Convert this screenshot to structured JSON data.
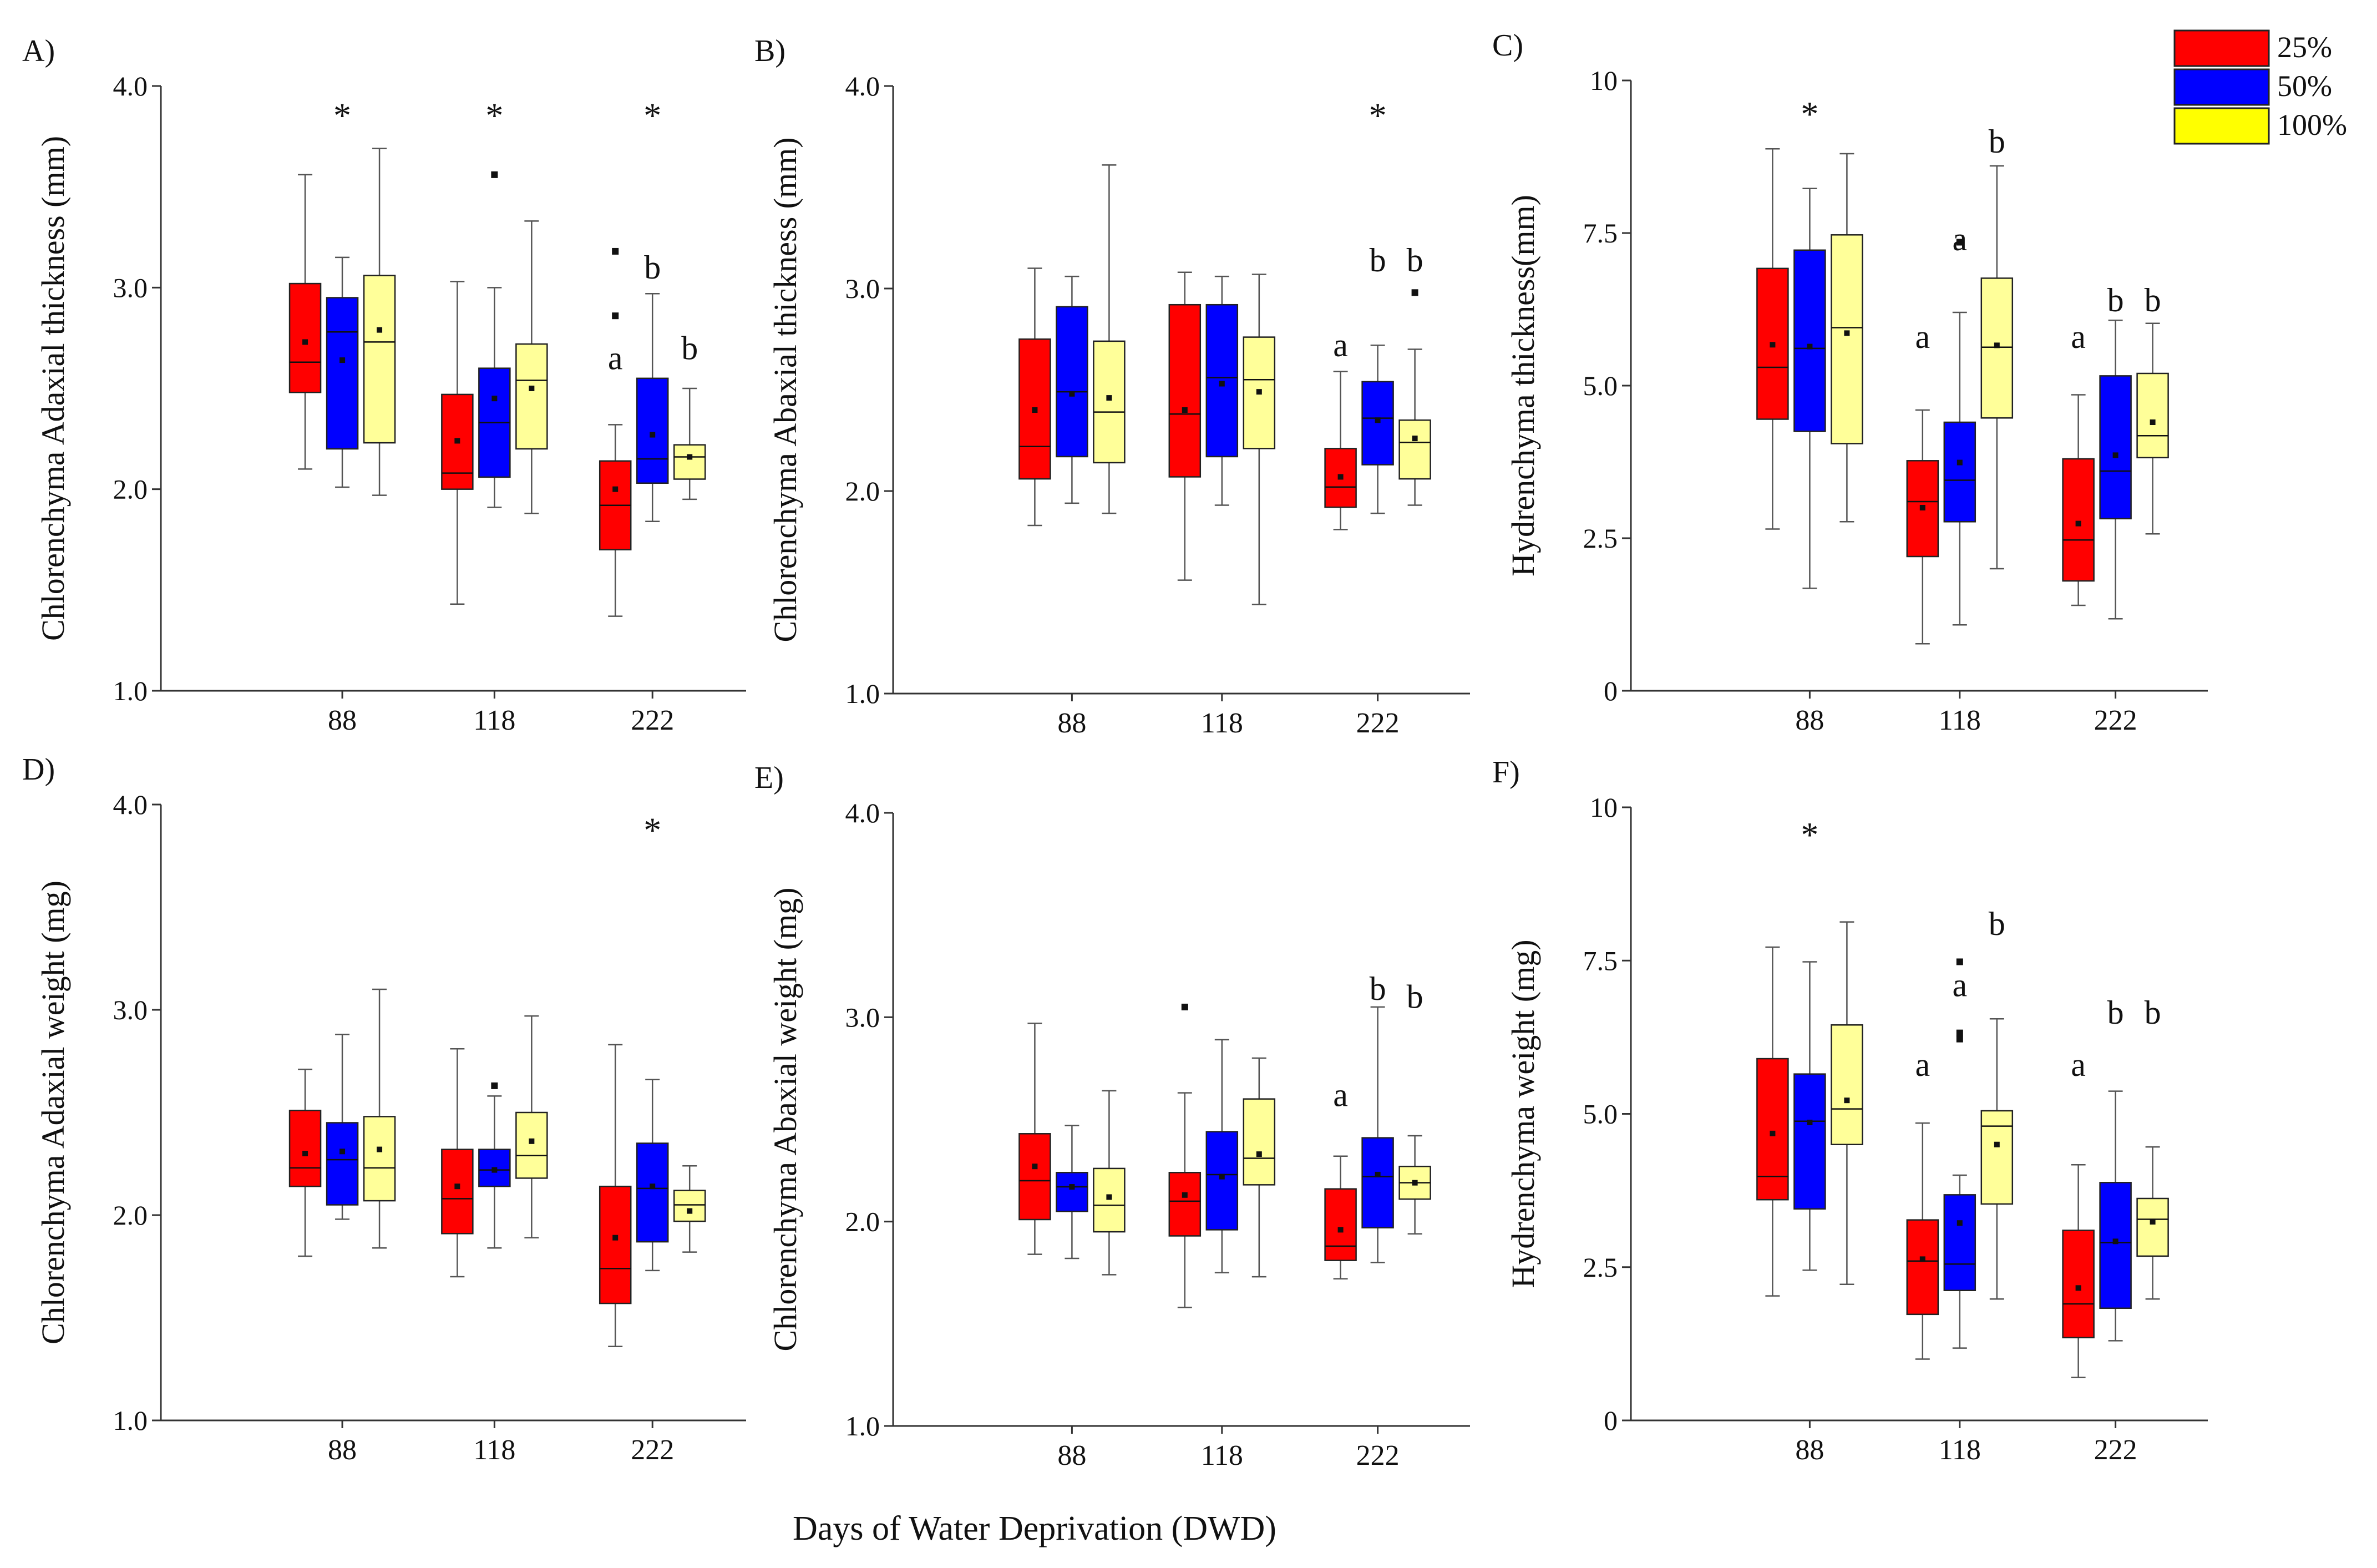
{
  "figure": {
    "xlabel": "Days of Water Deprivation (DWD)"
  },
  "legend": {
    "placement": "top-right",
    "entries": [
      {
        "label": "25%",
        "color": "#ff0000"
      },
      {
        "label": "50%",
        "color": "#0000ff"
      },
      {
        "label": "100%",
        "color": "#ffff00"
      }
    ]
  },
  "box_colors": [
    "#ff0000",
    "#0000ff",
    "#ffff99"
  ],
  "chart_data": [
    {
      "type": "boxplot",
      "panel": "A)",
      "ylabel": "Chlorenchyma Adaxial thickness (mm)",
      "ylim": [
        1.0,
        4.0
      ],
      "yticks": [
        "1.0",
        "2.0",
        "3.0",
        "4.0"
      ],
      "ytick_values": [
        1.0,
        2.0,
        3.0,
        4.0
      ],
      "categories": [
        "88",
        "118",
        "222"
      ],
      "series": [
        {
          "name": "25%",
          "boxes": [
            {
              "whislo": 2.1,
              "q1": 2.48,
              "med": 2.63,
              "mean": 2.73,
              "q3": 3.02,
              "whishi": 3.56,
              "fliers": []
            },
            {
              "whislo": 1.43,
              "q1": 2.0,
              "med": 2.08,
              "mean": 2.24,
              "q3": 2.47,
              "whishi": 3.03,
              "fliers": []
            },
            {
              "whislo": 1.37,
              "q1": 1.7,
              "med": 1.92,
              "mean": 2.0,
              "q3": 2.14,
              "whishi": 2.32,
              "fliers": [
                2.86,
                3.18
              ]
            }
          ]
        },
        {
          "name": "50%",
          "boxes": [
            {
              "whislo": 2.01,
              "q1": 2.2,
              "med": 2.78,
              "mean": 2.64,
              "q3": 2.95,
              "whishi": 3.15,
              "fliers": []
            },
            {
              "whislo": 1.91,
              "q1": 2.06,
              "med": 2.33,
              "mean": 2.45,
              "q3": 2.6,
              "whishi": 3.0,
              "fliers": [
                3.56
              ]
            },
            {
              "whislo": 1.84,
              "q1": 2.03,
              "med": 2.15,
              "mean": 2.27,
              "q3": 2.55,
              "whishi": 2.97,
              "fliers": []
            }
          ]
        },
        {
          "name": "100%",
          "boxes": [
            {
              "whislo": 1.97,
              "q1": 2.23,
              "med": 2.73,
              "mean": 2.79,
              "q3": 3.06,
              "whishi": 3.69,
              "fliers": []
            },
            {
              "whislo": 1.88,
              "q1": 2.2,
              "med": 2.54,
              "mean": 2.5,
              "q3": 2.72,
              "whishi": 3.33,
              "fliers": []
            },
            {
              "whislo": 1.95,
              "q1": 2.05,
              "med": 2.16,
              "mean": 2.16,
              "q3": 2.22,
              "whishi": 2.5,
              "fliers": []
            }
          ]
        }
      ],
      "annotations": [
        {
          "text": "*",
          "group": 0,
          "member": 1,
          "y": 3.9
        },
        {
          "text": "*",
          "group": 1,
          "member": 1,
          "y": 3.9
        },
        {
          "text": "*",
          "group": 2,
          "member": 1,
          "y": 3.9
        },
        {
          "text": "a",
          "group": 2,
          "member": 0,
          "y": 2.65
        },
        {
          "text": "b",
          "group": 2,
          "member": 1,
          "y": 3.1
        },
        {
          "text": "b",
          "group": 2,
          "member": 2,
          "y": 2.7
        }
      ]
    },
    {
      "type": "boxplot",
      "panel": "B)",
      "ylabel": "Chlorenchyma Abaxial thickness (mm)",
      "ylim": [
        1.0,
        4.0
      ],
      "yticks": [
        "1.0",
        "2.0",
        "3.0",
        "4.0"
      ],
      "ytick_values": [
        1.0,
        2.0,
        3.0,
        4.0
      ],
      "categories": [
        "88",
        "118",
        "222"
      ],
      "series": [
        {
          "name": "25%",
          "boxes": [
            {
              "whislo": 1.83,
              "q1": 2.06,
              "med": 2.22,
              "mean": 2.4,
              "q3": 2.75,
              "whishi": 3.1,
              "fliers": []
            },
            {
              "whislo": 1.56,
              "q1": 2.07,
              "med": 2.38,
              "mean": 2.4,
              "q3": 2.92,
              "whishi": 3.08,
              "fliers": []
            },
            {
              "whislo": 1.81,
              "q1": 1.92,
              "med": 2.02,
              "mean": 2.07,
              "q3": 2.21,
              "whishi": 2.59,
              "fliers": []
            }
          ]
        },
        {
          "name": "50%",
          "boxes": [
            {
              "whislo": 1.94,
              "q1": 2.17,
              "med": 2.49,
              "mean": 2.48,
              "q3": 2.91,
              "whishi": 3.06,
              "fliers": []
            },
            {
              "whislo": 1.93,
              "q1": 2.17,
              "med": 2.56,
              "mean": 2.53,
              "q3": 2.92,
              "whishi": 3.06,
              "fliers": []
            },
            {
              "whislo": 1.89,
              "q1": 2.13,
              "med": 2.36,
              "mean": 2.35,
              "q3": 2.54,
              "whishi": 2.72,
              "fliers": []
            }
          ]
        },
        {
          "name": "100%",
          "boxes": [
            {
              "whislo": 1.89,
              "q1": 2.14,
              "med": 2.39,
              "mean": 2.46,
              "q3": 2.74,
              "whishi": 3.61,
              "fliers": []
            },
            {
              "whislo": 1.44,
              "q1": 2.21,
              "med": 2.55,
              "mean": 2.49,
              "q3": 2.76,
              "whishi": 3.07,
              "fliers": []
            },
            {
              "whislo": 1.93,
              "q1": 2.06,
              "med": 2.24,
              "mean": 2.26,
              "q3": 2.35,
              "whishi": 2.7,
              "fliers": [
                2.98
              ]
            }
          ]
        }
      ],
      "annotations": [
        {
          "text": "*",
          "group": 2,
          "member": 1,
          "y": 3.9
        },
        {
          "text": "a",
          "group": 2,
          "member": 0,
          "y": 2.72
        },
        {
          "text": "b",
          "group": 2,
          "member": 1,
          "y": 3.14
        },
        {
          "text": "b",
          "group": 2,
          "member": 2,
          "y": 3.14
        }
      ]
    },
    {
      "type": "boxplot",
      "panel": "C)",
      "ylabel": "Hydrenchyma thickness(mm)",
      "ylim": [
        0,
        10
      ],
      "yticks": [
        "0",
        "2.5",
        "5.0",
        "7.5",
        "10"
      ],
      "ytick_values": [
        0,
        2.5,
        5.0,
        7.5,
        10
      ],
      "categories": [
        "88",
        "118",
        "222"
      ],
      "series": [
        {
          "name": "25%",
          "boxes": [
            {
              "whislo": 2.65,
              "q1": 4.45,
              "med": 5.3,
              "mean": 5.67,
              "q3": 6.92,
              "whishi": 8.88,
              "fliers": []
            },
            {
              "whislo": 0.77,
              "q1": 2.2,
              "med": 3.1,
              "mean": 3.0,
              "q3": 3.77,
              "whishi": 4.6,
              "fliers": []
            },
            {
              "whislo": 1.4,
              "q1": 1.8,
              "med": 2.47,
              "mean": 2.74,
              "q3": 3.8,
              "whishi": 4.85,
              "fliers": []
            }
          ]
        },
        {
          "name": "50%",
          "boxes": [
            {
              "whislo": 1.68,
              "q1": 4.25,
              "med": 5.61,
              "mean": 5.64,
              "q3": 7.22,
              "whishi": 8.23,
              "fliers": []
            },
            {
              "whislo": 1.08,
              "q1": 2.77,
              "med": 3.45,
              "mean": 3.74,
              "q3": 4.4,
              "whishi": 6.2,
              "fliers": [
                7.35
              ]
            },
            {
              "whislo": 1.18,
              "q1": 2.82,
              "med": 3.6,
              "mean": 3.86,
              "q3": 5.16,
              "whishi": 6.07,
              "fliers": []
            }
          ]
        },
        {
          "name": "100%",
          "boxes": [
            {
              "whislo": 2.77,
              "q1": 4.05,
              "med": 5.95,
              "mean": 5.86,
              "q3": 7.47,
              "whishi": 8.8,
              "fliers": []
            },
            {
              "whislo": 2.0,
              "q1": 4.47,
              "med": 5.63,
              "mean": 5.66,
              "q3": 6.76,
              "whishi": 8.6,
              "fliers": []
            },
            {
              "whislo": 2.57,
              "q1": 3.82,
              "med": 4.18,
              "mean": 4.4,
              "q3": 5.2,
              "whishi": 6.02,
              "fliers": []
            }
          ]
        }
      ],
      "annotations": [
        {
          "text": "*",
          "group": 0,
          "member": 1,
          "y": 9.6
        },
        {
          "text": "a",
          "group": 1,
          "member": 0,
          "y": 5.8
        },
        {
          "text": "a",
          "group": 1,
          "member": 1,
          "y": 7.4
        },
        {
          "text": "b",
          "group": 1,
          "member": 2,
          "y": 9.0
        },
        {
          "text": "a",
          "group": 2,
          "member": 0,
          "y": 5.8
        },
        {
          "text": "b",
          "group": 2,
          "member": 1,
          "y": 6.4
        },
        {
          "text": "b",
          "group": 2,
          "member": 2,
          "y": 6.4
        }
      ]
    },
    {
      "type": "boxplot",
      "panel": "D)",
      "ylabel": "Chlorenchyma Adaxial weight (mg)",
      "ylim": [
        1.0,
        4.0
      ],
      "yticks": [
        "1.0",
        "2.0",
        "3.0",
        "4.0"
      ],
      "ytick_values": [
        1.0,
        2.0,
        3.0,
        4.0
      ],
      "categories": [
        "88",
        "118",
        "222"
      ],
      "series": [
        {
          "name": "25%",
          "boxes": [
            {
              "whislo": 1.8,
              "q1": 2.14,
              "med": 2.23,
              "mean": 2.3,
              "q3": 2.51,
              "whishi": 2.71,
              "fliers": []
            },
            {
              "whislo": 1.7,
              "q1": 1.91,
              "med": 2.08,
              "mean": 2.14,
              "q3": 2.32,
              "whishi": 2.81,
              "fliers": []
            },
            {
              "whislo": 1.36,
              "q1": 1.57,
              "med": 1.74,
              "mean": 1.89,
              "q3": 2.14,
              "whishi": 2.83,
              "fliers": []
            }
          ]
        },
        {
          "name": "50%",
          "boxes": [
            {
              "whislo": 1.98,
              "q1": 2.05,
              "med": 2.27,
              "mean": 2.31,
              "q3": 2.45,
              "whishi": 2.88,
              "fliers": []
            },
            {
              "whislo": 1.84,
              "q1": 2.14,
              "med": 2.22,
              "mean": 2.22,
              "q3": 2.32,
              "whishi": 2.58,
              "fliers": [
                2.63
              ]
            },
            {
              "whislo": 1.73,
              "q1": 1.87,
              "med": 2.13,
              "mean": 2.14,
              "q3": 2.35,
              "whishi": 2.66,
              "fliers": []
            }
          ]
        },
        {
          "name": "100%",
          "boxes": [
            {
              "whislo": 1.84,
              "q1": 2.07,
              "med": 2.23,
              "mean": 2.32,
              "q3": 2.48,
              "whishi": 3.1,
              "fliers": []
            },
            {
              "whislo": 1.89,
              "q1": 2.18,
              "med": 2.29,
              "mean": 2.36,
              "q3": 2.5,
              "whishi": 2.97,
              "fliers": []
            },
            {
              "whislo": 1.82,
              "q1": 1.97,
              "med": 2.05,
              "mean": 2.02,
              "q3": 2.12,
              "whishi": 2.24,
              "fliers": []
            }
          ]
        }
      ],
      "annotations": [
        {
          "text": "*",
          "group": 2,
          "member": 1,
          "y": 3.92
        }
      ]
    },
    {
      "type": "boxplot",
      "panel": "E)",
      "ylabel": "Chlorenchyma Abaxial weight (mg)",
      "ylim": [
        1.0,
        4.0
      ],
      "yticks": [
        "1.0",
        "2.0",
        "3.0",
        "4.0"
      ],
      "ytick_values": [
        1.0,
        2.0,
        3.0,
        4.0
      ],
      "categories": [
        "88",
        "118",
        "222"
      ],
      "series": [
        {
          "name": "25%",
          "boxes": [
            {
              "whislo": 1.84,
              "q1": 2.01,
              "med": 2.2,
              "mean": 2.27,
              "q3": 2.43,
              "whishi": 2.97,
              "fliers": []
            },
            {
              "whislo": 1.58,
              "q1": 1.93,
              "med": 2.1,
              "mean": 2.13,
              "q3": 2.24,
              "whishi": 2.63,
              "fliers": [
                3.05
              ]
            },
            {
              "whislo": 1.72,
              "q1": 1.81,
              "med": 1.88,
              "mean": 1.96,
              "q3": 2.16,
              "whishi": 2.32,
              "fliers": []
            }
          ]
        },
        {
          "name": "50%",
          "boxes": [
            {
              "whislo": 1.82,
              "q1": 2.05,
              "med": 2.17,
              "mean": 2.17,
              "q3": 2.24,
              "whishi": 2.47,
              "fliers": []
            },
            {
              "whislo": 1.75,
              "q1": 1.96,
              "med": 2.23,
              "mean": 2.22,
              "q3": 2.44,
              "whishi": 2.89,
              "fliers": []
            },
            {
              "whislo": 1.8,
              "q1": 1.97,
              "med": 2.22,
              "mean": 2.23,
              "q3": 2.41,
              "whishi": 3.05,
              "fliers": []
            }
          ]
        },
        {
          "name": "100%",
          "boxes": [
            {
              "whislo": 1.74,
              "q1": 1.95,
              "med": 2.08,
              "mean": 2.12,
              "q3": 2.26,
              "whishi": 2.64,
              "fliers": []
            },
            {
              "whislo": 1.73,
              "q1": 2.18,
              "med": 2.31,
              "mean": 2.33,
              "q3": 2.6,
              "whishi": 2.8,
              "fliers": []
            },
            {
              "whislo": 1.94,
              "q1": 2.11,
              "med": 2.19,
              "mean": 2.19,
              "q3": 2.27,
              "whishi": 2.42,
              "fliers": []
            }
          ]
        }
      ],
      "annotations": [
        {
          "text": "a",
          "group": 2,
          "member": 0,
          "y": 2.62
        },
        {
          "text": "b",
          "group": 2,
          "member": 1,
          "y": 3.14
        },
        {
          "text": "b",
          "group": 2,
          "member": 2,
          "y": 3.1
        }
      ]
    },
    {
      "type": "boxplot",
      "panel": "F)",
      "ylabel": "Hydrenchyma weight (mg)",
      "ylim": [
        0,
        10
      ],
      "yticks": [
        "0",
        "2.5",
        "5.0",
        "7.5",
        "10"
      ],
      "ytick_values": [
        0,
        2.5,
        5.0,
        7.5,
        10
      ],
      "categories": [
        "88",
        "118",
        "222"
      ],
      "series": [
        {
          "name": "25%",
          "boxes": [
            {
              "whislo": 2.03,
              "q1": 3.6,
              "med": 3.98,
              "mean": 4.68,
              "q3": 5.9,
              "whishi": 7.72,
              "fliers": []
            },
            {
              "whislo": 1.0,
              "q1": 1.73,
              "med": 2.6,
              "mean": 2.63,
              "q3": 3.27,
              "whishi": 4.85,
              "fliers": []
            },
            {
              "whislo": 0.7,
              "q1": 1.35,
              "med": 1.9,
              "mean": 2.16,
              "q3": 3.1,
              "whishi": 4.17,
              "fliers": []
            }
          ]
        },
        {
          "name": "50%",
          "boxes": [
            {
              "whislo": 2.45,
              "q1": 3.45,
              "med": 4.88,
              "mean": 4.86,
              "q3": 5.65,
              "whishi": 7.48,
              "fliers": []
            },
            {
              "whislo": 1.18,
              "q1": 2.12,
              "med": 2.55,
              "mean": 3.22,
              "q3": 3.68,
              "whishi": 4.0,
              "fliers": [
                6.22,
                6.32,
                7.48
              ]
            },
            {
              "whislo": 1.3,
              "q1": 1.83,
              "med": 2.9,
              "mean": 2.92,
              "q3": 3.88,
              "whishi": 5.37,
              "fliers": []
            }
          ]
        },
        {
          "name": "100%",
          "boxes": [
            {
              "whislo": 2.22,
              "q1": 4.5,
              "med": 5.08,
              "mean": 5.22,
              "q3": 6.45,
              "whishi": 8.13,
              "fliers": []
            },
            {
              "whislo": 1.98,
              "q1": 3.53,
              "med": 4.8,
              "mean": 4.5,
              "q3": 5.05,
              "whishi": 6.55,
              "fliers": []
            },
            {
              "whislo": 1.98,
              "q1": 2.68,
              "med": 3.28,
              "mean": 3.24,
              "q3": 3.62,
              "whishi": 4.46,
              "fliers": []
            }
          ]
        }
      ],
      "annotations": [
        {
          "text": "*",
          "group": 0,
          "member": 1,
          "y": 9.7
        },
        {
          "text": "a",
          "group": 1,
          "member": 0,
          "y": 5.8
        },
        {
          "text": "a",
          "group": 1,
          "member": 1,
          "y": 7.1
        },
        {
          "text": "b",
          "group": 1,
          "member": 2,
          "y": 8.1
        },
        {
          "text": "a",
          "group": 2,
          "member": 0,
          "y": 5.8
        },
        {
          "text": "b",
          "group": 2,
          "member": 1,
          "y": 6.65
        },
        {
          "text": "b",
          "group": 2,
          "member": 2,
          "y": 6.65
        }
      ]
    }
  ]
}
